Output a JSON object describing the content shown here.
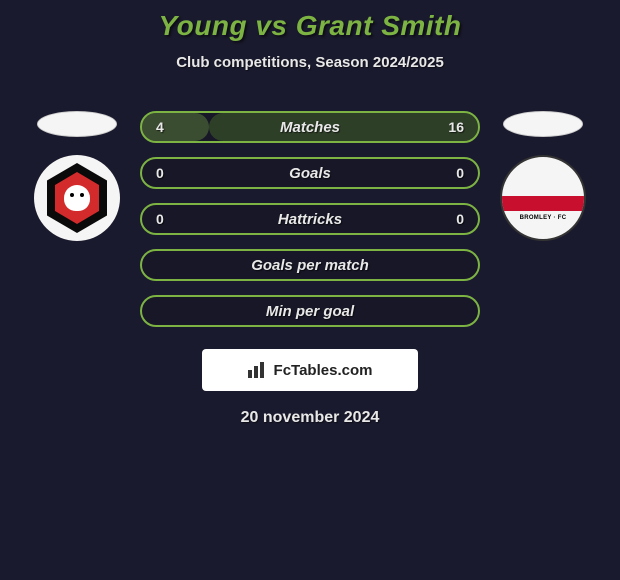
{
  "title": "Young vs Grant Smith",
  "subtitle": "Club competitions, Season 2024/2025",
  "date": "20 november 2024",
  "watermark": "FcTables.com",
  "bars": [
    {
      "label": "Matches",
      "left": "4",
      "right": "16",
      "left_pct": 20,
      "right_pct": 80
    },
    {
      "label": "Goals",
      "left": "0",
      "right": "0",
      "left_pct": 0,
      "right_pct": 0
    },
    {
      "label": "Hattricks",
      "left": "0",
      "right": "0",
      "left_pct": 0,
      "right_pct": 0
    },
    {
      "label": "Goals per match",
      "left": "",
      "right": "",
      "left_pct": 0,
      "right_pct": 0
    },
    {
      "label": "Min per goal",
      "left": "",
      "right": "",
      "left_pct": 0,
      "right_pct": 0
    }
  ],
  "colors": {
    "accent": "#7cb342",
    "bg": "#1a1a2e",
    "text": "#e8e8e8",
    "left_team_primary": "#d32b2b",
    "left_team_secondary": "#0a0a0a",
    "right_team_stripe": "#c8102e"
  },
  "right_badge_text": "BROMLEY · FC"
}
